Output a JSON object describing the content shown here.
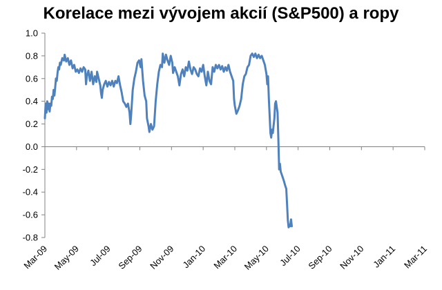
{
  "chart_data": {
    "type": "line",
    "title": "Korelace mezi vývojem akcií (S&P500) a ropy",
    "xlabel": "",
    "ylabel": "",
    "ylim": [
      -0.8,
      1.0
    ],
    "yticks": [
      "1.0",
      "0.8",
      "0.6",
      "0.4",
      "0.2",
      "0.0",
      "-0.2",
      "-0.4",
      "-0.6",
      "-0.8"
    ],
    "xticks": [
      "Mar-09",
      "May-09",
      "Jul-09",
      "Sep-09",
      "Nov-09",
      "Jan-10",
      "Mar-10",
      "May-10",
      "Jul-10",
      "Sep-10",
      "Nov-10",
      "Jan-11",
      "Mar-11"
    ],
    "grid": false,
    "line_color": "#4f81bd",
    "x_unit": "months since Mar-09",
    "series": [
      {
        "name": "",
        "points": [
          [
            0.0,
            0.25
          ],
          [
            0.05,
            0.38
          ],
          [
            0.1,
            0.3
          ],
          [
            0.15,
            0.4
          ],
          [
            0.2,
            0.33
          ],
          [
            0.25,
            0.38
          ],
          [
            0.3,
            0.31
          ],
          [
            0.35,
            0.38
          ],
          [
            0.4,
            0.36
          ],
          [
            0.45,
            0.44
          ],
          [
            0.5,
            0.42
          ],
          [
            0.55,
            0.5
          ],
          [
            0.6,
            0.45
          ],
          [
            0.65,
            0.52
          ],
          [
            0.7,
            0.6
          ],
          [
            0.75,
            0.58
          ],
          [
            0.8,
            0.65
          ],
          [
            0.85,
            0.7
          ],
          [
            0.9,
            0.68
          ],
          [
            0.95,
            0.74
          ],
          [
            1.0,
            0.72
          ],
          [
            1.1,
            0.78
          ],
          [
            1.2,
            0.76
          ],
          [
            1.25,
            0.81
          ],
          [
            1.35,
            0.75
          ],
          [
            1.45,
            0.78
          ],
          [
            1.55,
            0.72
          ],
          [
            1.65,
            0.76
          ],
          [
            1.75,
            0.69
          ],
          [
            1.85,
            0.72
          ],
          [
            1.95,
            0.66
          ],
          [
            2.05,
            0.68
          ],
          [
            2.15,
            0.65
          ],
          [
            2.25,
            0.69
          ],
          [
            2.35,
            0.66
          ],
          [
            2.45,
            0.7
          ],
          [
            2.55,
            0.68
          ],
          [
            2.6,
            0.55
          ],
          [
            2.65,
            0.62
          ],
          [
            2.75,
            0.67
          ],
          [
            2.85,
            0.58
          ],
          [
            2.95,
            0.66
          ],
          [
            3.05,
            0.55
          ],
          [
            3.15,
            0.62
          ],
          [
            3.25,
            0.57
          ],
          [
            3.3,
            0.66
          ],
          [
            3.4,
            0.6
          ],
          [
            3.5,
            0.54
          ],
          [
            3.55,
            0.47
          ],
          [
            3.6,
            0.43
          ],
          [
            3.65,
            0.5
          ],
          [
            3.75,
            0.55
          ],
          [
            3.85,
            0.58
          ],
          [
            3.95,
            0.53
          ],
          [
            4.05,
            0.57
          ],
          [
            4.15,
            0.54
          ],
          [
            4.25,
            0.58
          ],
          [
            4.35,
            0.53
          ],
          [
            4.45,
            0.58
          ],
          [
            4.55,
            0.56
          ],
          [
            4.65,
            0.62
          ],
          [
            4.75,
            0.54
          ],
          [
            4.85,
            0.48
          ],
          [
            4.95,
            0.4
          ],
          [
            5.05,
            0.38
          ],
          [
            5.15,
            0.35
          ],
          [
            5.25,
            0.38
          ],
          [
            5.35,
            0.3
          ],
          [
            5.4,
            0.2
          ],
          [
            5.45,
            0.28
          ],
          [
            5.55,
            0.5
          ],
          [
            5.65,
            0.6
          ],
          [
            5.75,
            0.66
          ],
          [
            5.85,
            0.74
          ],
          [
            5.95,
            0.76
          ],
          [
            6.05,
            0.7
          ],
          [
            6.1,
            0.77
          ],
          [
            6.2,
            0.58
          ],
          [
            6.3,
            0.45
          ],
          [
            6.4,
            0.4
          ],
          [
            6.45,
            0.25
          ],
          [
            6.55,
            0.18
          ],
          [
            6.6,
            0.13
          ],
          [
            6.7,
            0.2
          ],
          [
            6.8,
            0.15
          ],
          [
            6.9,
            0.18
          ],
          [
            7.0,
            0.4
          ],
          [
            7.1,
            0.55
          ],
          [
            7.2,
            0.66
          ],
          [
            7.3,
            0.72
          ],
          [
            7.4,
            0.7
          ],
          [
            7.45,
            0.82
          ],
          [
            7.55,
            0.74
          ],
          [
            7.65,
            0.81
          ],
          [
            7.75,
            0.76
          ],
          [
            7.85,
            0.72
          ],
          [
            7.95,
            0.8
          ],
          [
            8.05,
            0.74
          ],
          [
            8.1,
            0.65
          ],
          [
            8.2,
            0.7
          ],
          [
            8.3,
            0.66
          ],
          [
            8.4,
            0.62
          ],
          [
            8.5,
            0.54
          ],
          [
            8.6,
            0.64
          ],
          [
            8.7,
            0.68
          ],
          [
            8.8,
            0.62
          ],
          [
            8.9,
            0.7
          ],
          [
            9.0,
            0.67
          ],
          [
            9.1,
            0.75
          ],
          [
            9.2,
            0.68
          ],
          [
            9.3,
            0.64
          ],
          [
            9.4,
            0.7
          ],
          [
            9.5,
            0.68
          ],
          [
            9.6,
            0.64
          ],
          [
            9.7,
            0.62
          ],
          [
            9.8,
            0.69
          ],
          [
            9.9,
            0.66
          ],
          [
            10.0,
            0.72
          ],
          [
            10.1,
            0.62
          ],
          [
            10.2,
            0.54
          ],
          [
            10.3,
            0.66
          ],
          [
            10.4,
            0.58
          ],
          [
            10.5,
            0.55
          ],
          [
            10.6,
            0.7
          ],
          [
            10.7,
            0.66
          ],
          [
            10.8,
            0.72
          ],
          [
            10.9,
            0.69
          ],
          [
            11.0,
            0.72
          ],
          [
            11.1,
            0.68
          ],
          [
            11.2,
            0.71
          ],
          [
            11.3,
            0.66
          ],
          [
            11.4,
            0.7
          ],
          [
            11.5,
            0.67
          ],
          [
            11.6,
            0.72
          ],
          [
            11.7,
            0.66
          ],
          [
            11.8,
            0.62
          ],
          [
            11.9,
            0.58
          ],
          [
            11.95,
            0.42
          ],
          [
            12.0,
            0.36
          ],
          [
            12.1,
            0.29
          ],
          [
            12.2,
            0.32
          ],
          [
            12.3,
            0.36
          ],
          [
            12.4,
            0.42
          ],
          [
            12.5,
            0.55
          ],
          [
            12.6,
            0.62
          ],
          [
            12.7,
            0.64
          ],
          [
            12.8,
            0.7
          ],
          [
            12.9,
            0.72
          ],
          [
            13.0,
            0.8
          ],
          [
            13.1,
            0.82
          ],
          [
            13.2,
            0.79
          ],
          [
            13.3,
            0.82
          ],
          [
            13.4,
            0.78
          ],
          [
            13.5,
            0.81
          ],
          [
            13.6,
            0.78
          ],
          [
            13.7,
            0.8
          ],
          [
            13.8,
            0.76
          ],
          [
            13.9,
            0.72
          ],
          [
            14.0,
            0.64
          ],
          [
            14.05,
            0.55
          ],
          [
            14.1,
            0.62
          ],
          [
            14.15,
            0.42
          ],
          [
            14.2,
            0.28
          ],
          [
            14.25,
            0.12
          ],
          [
            14.3,
            0.08
          ],
          [
            14.35,
            0.15
          ],
          [
            14.4,
            0.12
          ],
          [
            14.5,
            0.25
          ],
          [
            14.55,
            0.38
          ],
          [
            14.6,
            0.4
          ],
          [
            14.65,
            0.35
          ],
          [
            14.7,
            0.3
          ],
          [
            14.75,
            0.08
          ],
          [
            14.8,
            -0.2
          ],
          [
            14.85,
            -0.15
          ],
          [
            14.9,
            -0.22
          ],
          [
            15.0,
            -0.26
          ],
          [
            15.1,
            -0.3
          ],
          [
            15.2,
            -0.35
          ],
          [
            15.25,
            -0.37
          ],
          [
            15.3,
            -0.5
          ],
          [
            15.35,
            -0.65
          ],
          [
            15.4,
            -0.71
          ],
          [
            15.45,
            -0.69
          ],
          [
            15.5,
            -0.7
          ],
          [
            15.55,
            -0.64
          ],
          [
            15.6,
            -0.7
          ]
        ]
      }
    ]
  }
}
